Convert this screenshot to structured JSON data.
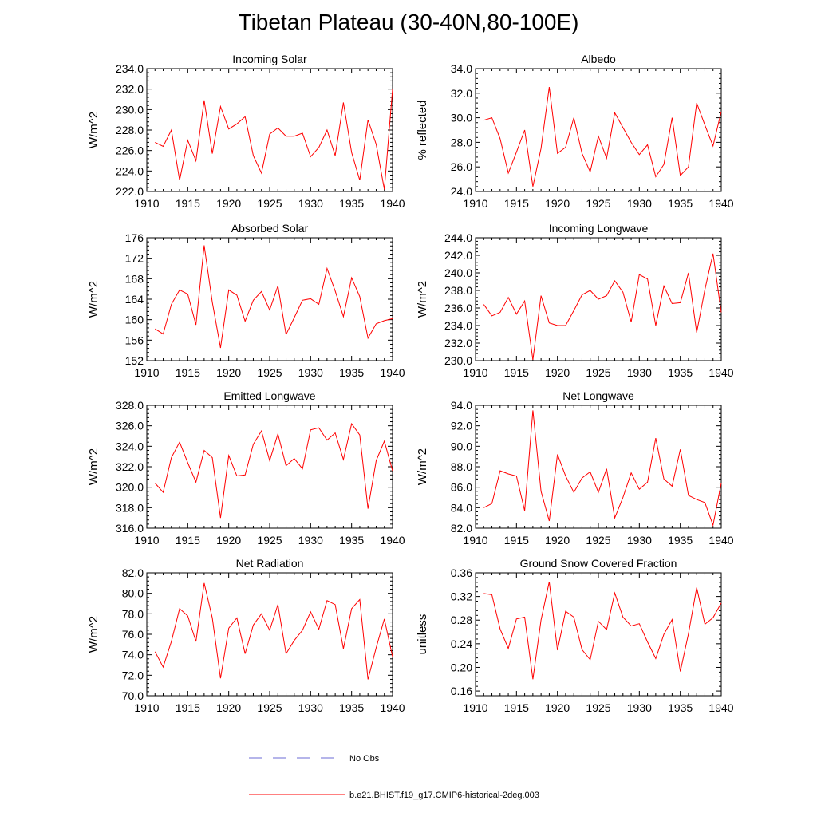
{
  "title": "Tibetan Plateau (30-40N,80-100E)",
  "legend": {
    "items": [
      {
        "label": "No Obs",
        "color": "#6b6bd6",
        "style": "dashed"
      },
      {
        "label": "b.e21.BHIST.f19_g17.CMIP6-historical-2deg.003",
        "color": "#ff0000",
        "style": "solid"
      }
    ]
  },
  "chart_data": [
    {
      "type": "line",
      "title": "Incoming Solar",
      "ylabel": "W/m^2",
      "xlim": [
        1910,
        1940
      ],
      "ylim": [
        222,
        234
      ],
      "xticks": [
        1910,
        1915,
        1920,
        1925,
        1930,
        1935,
        1940
      ],
      "yticks": [
        222,
        224,
        226,
        228,
        230,
        232,
        234
      ],
      "ytick_labels": [
        "222.0",
        "224.0",
        "226.0",
        "228.0",
        "230.0",
        "232.0",
        "234.0"
      ],
      "x": [
        1911,
        1912,
        1913,
        1914,
        1915,
        1916,
        1917,
        1918,
        1919,
        1920,
        1921,
        1922,
        1923,
        1924,
        1925,
        1926,
        1927,
        1928,
        1929,
        1930,
        1931,
        1932,
        1933,
        1934,
        1935,
        1936,
        1937,
        1938,
        1939,
        1940
      ],
      "series": [
        {
          "color": "#ff0000",
          "values": [
            226.8,
            226.4,
            228.0,
            223.1,
            227.0,
            225.0,
            230.9,
            225.7,
            230.3,
            228.1,
            228.6,
            229.3,
            225.5,
            223.8,
            227.6,
            228.2,
            227.4,
            227.4,
            227.7,
            225.4,
            226.3,
            228.0,
            225.5,
            230.7,
            225.8,
            223.1,
            229.0,
            226.6,
            222.2,
            232.0
          ]
        }
      ]
    },
    {
      "type": "line",
      "title": "Albedo",
      "ylabel": "% reflected",
      "xlim": [
        1910,
        1940
      ],
      "ylim": [
        24,
        34
      ],
      "xticks": [
        1910,
        1915,
        1920,
        1925,
        1930,
        1935,
        1940
      ],
      "yticks": [
        24,
        26,
        28,
        30,
        32,
        34
      ],
      "ytick_labels": [
        "24.0",
        "26.0",
        "28.0",
        "30.0",
        "32.0",
        "34.0"
      ],
      "x": [
        1911,
        1912,
        1913,
        1914,
        1915,
        1916,
        1917,
        1918,
        1919,
        1920,
        1921,
        1922,
        1923,
        1924,
        1925,
        1926,
        1927,
        1928,
        1929,
        1930,
        1931,
        1932,
        1933,
        1934,
        1935,
        1936,
        1937,
        1938,
        1939,
        1940
      ],
      "series": [
        {
          "color": "#ff0000",
          "values": [
            29.8,
            30.0,
            28.3,
            25.5,
            27.2,
            29.0,
            24.4,
            27.5,
            32.5,
            27.1,
            27.6,
            30.0,
            27.1,
            25.6,
            28.5,
            26.7,
            30.4,
            29.2,
            28.0,
            27.0,
            27.8,
            25.2,
            26.2,
            30.0,
            25.3,
            26.0,
            31.2,
            29.4,
            27.7,
            30.5
          ]
        }
      ]
    },
    {
      "type": "line",
      "title": "Absorbed Solar",
      "ylabel": "W/m^2",
      "xlim": [
        1910,
        1940
      ],
      "ylim": [
        152,
        176
      ],
      "xticks": [
        1910,
        1915,
        1920,
        1925,
        1930,
        1935,
        1940
      ],
      "yticks": [
        152,
        156,
        160,
        164,
        168,
        172,
        176
      ],
      "ytick_labels": [
        "152",
        "156",
        "160",
        "164",
        "168",
        "172",
        "176"
      ],
      "x": [
        1911,
        1912,
        1913,
        1914,
        1915,
        1916,
        1917,
        1918,
        1919,
        1920,
        1921,
        1922,
        1923,
        1924,
        1925,
        1926,
        1927,
        1928,
        1929,
        1930,
        1931,
        1932,
        1933,
        1934,
        1935,
        1936,
        1937,
        1938,
        1939,
        1940
      ],
      "series": [
        {
          "color": "#ff0000",
          "values": [
            158.2,
            157.2,
            163.0,
            165.8,
            165.0,
            159.0,
            174.5,
            163.4,
            154.5,
            165.8,
            164.8,
            159.7,
            163.8,
            165.5,
            161.9,
            166.6,
            157.1,
            160.4,
            163.8,
            164.1,
            163.0,
            170.0,
            165.6,
            160.6,
            168.2,
            164.5,
            156.4,
            159.2,
            159.8,
            160.2
          ]
        }
      ]
    },
    {
      "type": "line",
      "title": "Incoming Longwave",
      "ylabel": "W/m^2",
      "xlim": [
        1910,
        1940
      ],
      "ylim": [
        230,
        244
      ],
      "xticks": [
        1910,
        1915,
        1920,
        1925,
        1930,
        1935,
        1940
      ],
      "yticks": [
        230,
        232,
        234,
        236,
        238,
        240,
        242,
        244
      ],
      "ytick_labels": [
        "230.0",
        "232.0",
        "234.0",
        "236.0",
        "238.0",
        "240.0",
        "242.0",
        "244.0"
      ],
      "x": [
        1911,
        1912,
        1913,
        1914,
        1915,
        1916,
        1917,
        1918,
        1919,
        1920,
        1921,
        1922,
        1923,
        1924,
        1925,
        1926,
        1927,
        1928,
        1929,
        1930,
        1931,
        1932,
        1933,
        1934,
        1935,
        1936,
        1937,
        1938,
        1939,
        1940
      ],
      "series": [
        {
          "color": "#ff0000",
          "values": [
            236.4,
            235.1,
            235.5,
            237.2,
            235.3,
            236.8,
            230.1,
            237.4,
            234.3,
            234.0,
            234.0,
            235.7,
            237.5,
            238.0,
            237.0,
            237.4,
            239.1,
            237.8,
            234.4,
            239.8,
            239.3,
            234.0,
            238.5,
            236.5,
            236.6,
            240.0,
            233.2,
            238.1,
            242.2,
            235.5
          ]
        }
      ]
    },
    {
      "type": "line",
      "title": "Emitted Longwave",
      "ylabel": "W/m^2",
      "xlim": [
        1910,
        1940
      ],
      "ylim": [
        316,
        328
      ],
      "xticks": [
        1910,
        1915,
        1920,
        1925,
        1930,
        1935,
        1940
      ],
      "yticks": [
        316,
        318,
        320,
        322,
        324,
        326,
        328
      ],
      "ytick_labels": [
        "316.0",
        "318.0",
        "320.0",
        "322.0",
        "324.0",
        "326.0",
        "328.0"
      ],
      "x": [
        1911,
        1912,
        1913,
        1914,
        1915,
        1916,
        1917,
        1918,
        1919,
        1920,
        1921,
        1922,
        1923,
        1924,
        1925,
        1926,
        1927,
        1928,
        1929,
        1930,
        1931,
        1932,
        1933,
        1934,
        1935,
        1936,
        1937,
        1938,
        1939,
        1940
      ],
      "series": [
        {
          "color": "#ff0000",
          "values": [
            320.4,
            319.5,
            322.9,
            324.4,
            322.4,
            320.5,
            323.6,
            322.9,
            317.0,
            323.1,
            321.1,
            321.2,
            324.2,
            325.5,
            322.6,
            325.2,
            322.1,
            322.8,
            321.8,
            325.6,
            325.8,
            324.6,
            325.3,
            322.7,
            326.2,
            325.1,
            317.9,
            322.6,
            324.5,
            321.6
          ]
        }
      ]
    },
    {
      "type": "line",
      "title": "Net Longwave",
      "ylabel": "W/m^2",
      "xlim": [
        1910,
        1940
      ],
      "ylim": [
        82,
        94
      ],
      "xticks": [
        1910,
        1915,
        1920,
        1925,
        1930,
        1935,
        1940
      ],
      "yticks": [
        82,
        84,
        86,
        88,
        90,
        92,
        94
      ],
      "ytick_labels": [
        "82.0",
        "84.0",
        "86.0",
        "88.0",
        "90.0",
        "92.0",
        "94.0"
      ],
      "x": [
        1911,
        1912,
        1913,
        1914,
        1915,
        1916,
        1917,
        1918,
        1919,
        1920,
        1921,
        1922,
        1923,
        1924,
        1925,
        1926,
        1927,
        1928,
        1929,
        1930,
        1931,
        1932,
        1933,
        1934,
        1935,
        1936,
        1937,
        1938,
        1939,
        1940
      ],
      "series": [
        {
          "color": "#ff0000",
          "values": [
            84.0,
            84.4,
            87.6,
            87.3,
            87.1,
            83.7,
            93.5,
            85.6,
            82.7,
            89.2,
            87.1,
            85.5,
            86.9,
            87.5,
            85.5,
            87.8,
            83.0,
            85.0,
            87.4,
            85.8,
            86.5,
            90.8,
            86.8,
            86.1,
            89.7,
            85.2,
            84.8,
            84.5,
            82.3,
            86.4
          ]
        }
      ]
    },
    {
      "type": "line",
      "title": "Net Radiation",
      "ylabel": "W/m^2",
      "xlim": [
        1910,
        1940
      ],
      "ylim": [
        70,
        82
      ],
      "xticks": [
        1910,
        1915,
        1920,
        1925,
        1930,
        1935,
        1940
      ],
      "yticks": [
        70,
        72,
        74,
        76,
        78,
        80,
        82
      ],
      "ytick_labels": [
        "70.0",
        "72.0",
        "74.0",
        "76.0",
        "78.0",
        "80.0",
        "82.0"
      ],
      "x": [
        1911,
        1912,
        1913,
        1914,
        1915,
        1916,
        1917,
        1918,
        1919,
        1920,
        1921,
        1922,
        1923,
        1924,
        1925,
        1926,
        1927,
        1928,
        1929,
        1930,
        1931,
        1932,
        1933,
        1934,
        1935,
        1936,
        1937,
        1938,
        1939,
        1940
      ],
      "series": [
        {
          "color": "#ff0000",
          "values": [
            74.3,
            72.8,
            75.3,
            78.5,
            77.8,
            75.3,
            81.0,
            77.6,
            71.7,
            76.6,
            77.6,
            74.1,
            76.9,
            78.0,
            76.4,
            78.9,
            74.1,
            75.4,
            76.4,
            78.2,
            76.5,
            79.3,
            78.9,
            74.6,
            78.5,
            79.4,
            71.6,
            74.7,
            77.5,
            73.8
          ]
        }
      ]
    },
    {
      "type": "line",
      "title": "Ground Snow Covered Fraction",
      "ylabel": "unitless",
      "xlim": [
        1910,
        1940
      ],
      "ylim": [
        0.152,
        0.36
      ],
      "xticks": [
        1910,
        1915,
        1920,
        1925,
        1930,
        1935,
        1940
      ],
      "yticks": [
        0.16,
        0.2,
        0.24,
        0.28,
        0.32,
        0.36
      ],
      "ytick_labels": [
        "0.16",
        "0.20",
        "0.24",
        "0.28",
        "0.32",
        "0.36"
      ],
      "x": [
        1911,
        1912,
        1913,
        1914,
        1915,
        1916,
        1917,
        1918,
        1919,
        1920,
        1921,
        1922,
        1923,
        1924,
        1925,
        1926,
        1927,
        1928,
        1929,
        1930,
        1931,
        1932,
        1933,
        1934,
        1935,
        1936,
        1937,
        1938,
        1939,
        1940
      ],
      "series": [
        {
          "color": "#ff0000",
          "values": [
            0.325,
            0.323,
            0.265,
            0.232,
            0.282,
            0.285,
            0.18,
            0.28,
            0.345,
            0.229,
            0.295,
            0.285,
            0.23,
            0.213,
            0.278,
            0.264,
            0.326,
            0.285,
            0.27,
            0.274,
            0.243,
            0.215,
            0.256,
            0.281,
            0.193,
            0.257,
            0.335,
            0.273,
            0.284,
            0.309
          ]
        }
      ]
    }
  ]
}
